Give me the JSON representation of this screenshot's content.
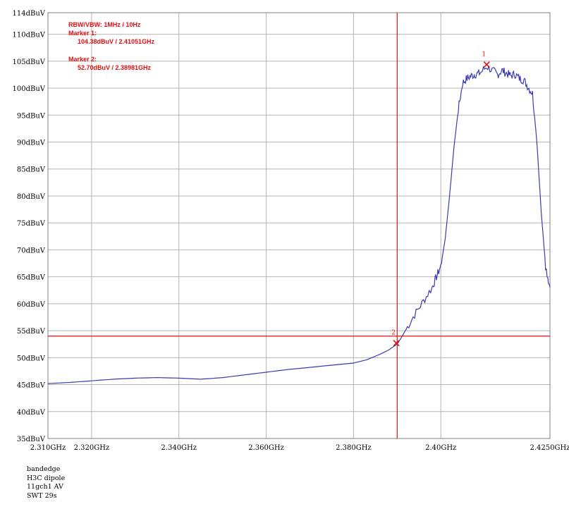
{
  "chart_data": {
    "type": "line",
    "xlabel": "",
    "ylabel": "",
    "xlim": [
      2.31,
      2.425
    ],
    "ylim": [
      35,
      114
    ],
    "grid": true,
    "y_ticks": [
      {
        "v": 114,
        "label": "114dBuV"
      },
      {
        "v": 110,
        "label": "110dBuV"
      },
      {
        "v": 105,
        "label": "105dBuV"
      },
      {
        "v": 100,
        "label": "100dBuV"
      },
      {
        "v": 95,
        "label": "95dBuV"
      },
      {
        "v": 90,
        "label": "90dBuV"
      },
      {
        "v": 85,
        "label": "85dBuV"
      },
      {
        "v": 80,
        "label": "80dBuV"
      },
      {
        "v": 75,
        "label": "75dBuV"
      },
      {
        "v": 70,
        "label": "70dBuV"
      },
      {
        "v": 65,
        "label": "65dBuV"
      },
      {
        "v": 60,
        "label": "60dBuV"
      },
      {
        "v": 55,
        "label": "55dBuV"
      },
      {
        "v": 50,
        "label": "50dBuV"
      },
      {
        "v": 45,
        "label": "45dBuV"
      },
      {
        "v": 40,
        "label": "40dBuV"
      },
      {
        "v": 35,
        "label": "35dBuV"
      }
    ],
    "x_ticks": [
      {
        "v": 2.31,
        "label": "2.310GHz"
      },
      {
        "v": 2.32,
        "label": "2.320GHz"
      },
      {
        "v": 2.34,
        "label": "2.340GHz"
      },
      {
        "v": 2.36,
        "label": "2.360GHz"
      },
      {
        "v": 2.38,
        "label": "2.380GHz"
      },
      {
        "v": 2.4,
        "label": "2.40GHz"
      },
      {
        "v": 2.425,
        "label": "2.4250GHz"
      }
    ],
    "series": [
      {
        "color": "#3b3bb0",
        "x": [
          2.31,
          2.315,
          2.32,
          2.325,
          2.33,
          2.335,
          2.34,
          2.345,
          2.35,
          2.355,
          2.36,
          2.365,
          2.37,
          2.375,
          2.38,
          2.383,
          2.386,
          2.388,
          2.39,
          2.391,
          2.392,
          2.394,
          2.396,
          2.398,
          2.399,
          2.4,
          2.401,
          2.402,
          2.403,
          2.404,
          2.405,
          2.406,
          2.407,
          2.408,
          2.409,
          2.4105,
          2.412,
          2.413,
          2.414,
          2.415,
          2.416,
          2.417,
          2.418,
          2.419,
          2.42,
          2.421,
          2.422,
          2.423,
          2.424,
          2.425
        ],
        "y": [
          45.2,
          45.4,
          45.7,
          46.0,
          46.2,
          46.3,
          46.2,
          46.0,
          46.3,
          46.8,
          47.3,
          47.8,
          48.2,
          48.6,
          49.0,
          49.6,
          50.6,
          51.4,
          52.5,
          53.8,
          55.2,
          58.0,
          60.5,
          63.0,
          65.0,
          67.0,
          72.0,
          80.0,
          89.0,
          96.0,
          101.0,
          101.8,
          102.3,
          102.6,
          102.8,
          104.0,
          103.2,
          102.5,
          103.3,
          102.8,
          102.3,
          102.6,
          101.8,
          101.5,
          100.2,
          99.0,
          90.0,
          77.0,
          67.0,
          63.0
        ]
      }
    ],
    "markers": [
      {
        "id": "1",
        "x": 2.41051,
        "y": 104.38
      },
      {
        "id": "2",
        "x": 2.38981,
        "y": 52.7
      }
    ],
    "vline_x": 2.39,
    "hline_y": 54.0,
    "annotations": [
      "RBW/VBW: 1MHz / 10Hz",
      "Marker 1:",
      "104.38dBuV / 2.41051GHz",
      "Marker 2:",
      "52.70dBuV / 2.38981GHz"
    ]
  },
  "footer": {
    "lines": [
      "bandedge",
      "H3C dipole",
      "11gch1 AV",
      "SWT 29s"
    ]
  },
  "colors": {
    "trace": "#3b3bb0",
    "marker": "#e01010",
    "grid": "#b5b5b5"
  }
}
